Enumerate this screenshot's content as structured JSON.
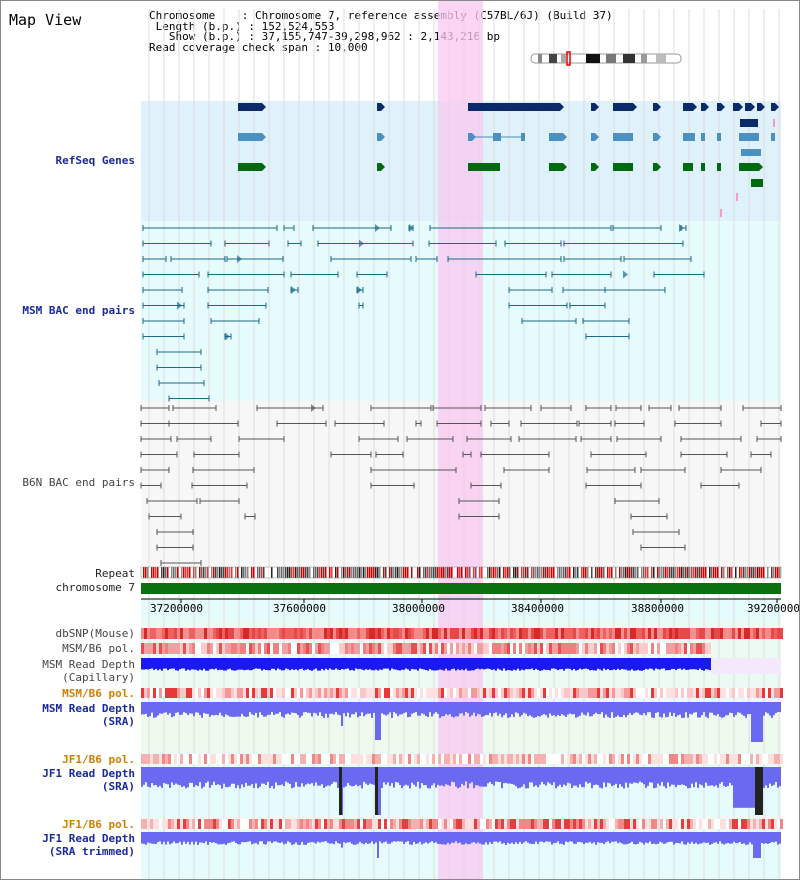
{
  "page": {
    "title": "Map View"
  },
  "header": {
    "chromosome_label": "Chromosome",
    "chromosome_value": "Chromosome 7, reference assembly (C57BL/6J) (Build 37)",
    "length_label": "Length (b.p.)",
    "length_value": "152,524,553",
    "show_label": "Show (b.p.)",
    "show_value": "37,155,747-39,298,962 : 2,143,216 bp",
    "coverage_label": "Read coverage check span",
    "coverage_value": "10,000"
  },
  "tracks": {
    "refseq": "RefSeq Genes",
    "msm_bac": "MSM BAC end pairs",
    "b6n_bac": "B6N BAC end pairs",
    "repeat": "Repeat",
    "chromosome": "chromosome 7",
    "dbsnp": "dbSNP(Mouse)",
    "msm_b6_pol_1": "MSM/B6 pol.",
    "msm_depth_cap_1": "MSM Read Depth",
    "msm_depth_cap_2": "(Capillary)",
    "msm_b6_pol_2": "MSM/B6 pol.",
    "msm_depth_sra_1": "MSM Read Depth",
    "msm_depth_sra_2": "(SRA)",
    "jf1_b6_pol_1": "JF1/B6 pol.",
    "jf1_depth_1": "JF1 Read Depth",
    "jf1_depth_2": "(SRA)",
    "jf1_b6_pol_2": "JF1/B6 pol.",
    "jf1_trim_1": "JF1 Read Depth",
    "jf1_trim_2": "(SRA trimmed)"
  },
  "axis": {
    "ticks": [
      "37200000",
      "37600000",
      "38000000",
      "38400000",
      "38800000",
      "39200000"
    ]
  },
  "colors": {
    "refseq_bg": "#dff1fb",
    "msm_bg": "#e6fbfb",
    "b6n_bg": "#f7f7f7",
    "highlight": "#f8c8f0",
    "gene_dark": "#0a2a6a",
    "gene_mid": "#4a90c0",
    "gene_green": "#006a10",
    "bac_teal": "#1a6a8a",
    "bac_gray": "#555555",
    "chromosome_bar": "#0a7010",
    "read_depth": "#1a1aee",
    "read_depth_light": "#6a6af0"
  }
}
